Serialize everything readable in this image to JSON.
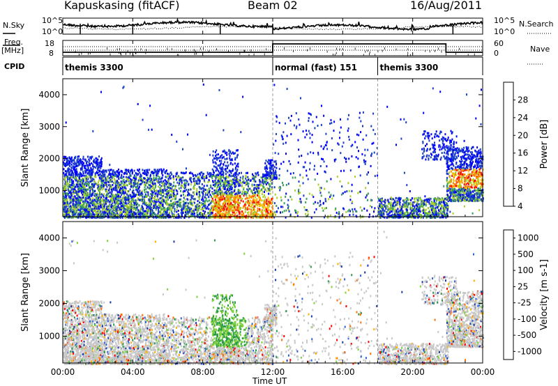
{
  "header": {
    "station": "Kapuskasing (fitACF)",
    "beam": "Beam 02",
    "date": "16/Aug/2011"
  },
  "left_labels": {
    "nsky": "N.Sky",
    "freq": "Freq.",
    "freq_unit": "[MHz]",
    "cpid": "CPID"
  },
  "right_labels": {
    "nsearch": "N.Search",
    "nave": "Nave"
  },
  "chart_data": [
    {
      "type": "line",
      "name": "noise-panel",
      "y_ticks_left": [
        "10^5",
        "10^0"
      ],
      "y_ticks_right": [
        "10^5",
        "10^0"
      ],
      "x_range_hours": [
        0,
        24
      ]
    },
    {
      "type": "line",
      "name": "freq-nave-panel",
      "y_ticks_left": [
        18,
        8
      ],
      "y_ticks_right": [
        60,
        0
      ],
      "cpid_segments": [
        {
          "label": "themis 3300",
          "start_hour": 0,
          "end_hour": 12
        },
        {
          "label": "normal (fast) 151",
          "start_hour": 12,
          "end_hour": 18
        },
        {
          "label": "themis 3300",
          "start_hour": 18,
          "end_hour": 24
        }
      ]
    },
    {
      "type": "heatmap",
      "name": "power",
      "ylabel": "Slant Range [km]",
      "ylim": [
        180,
        4500
      ],
      "y_ticks": [
        1000,
        2000,
        3000,
        4000
      ],
      "colorbar_label": "Power [dB]",
      "colorbar_ticks": [
        "28",
        "24",
        "20",
        "16",
        "12",
        "8",
        "4"
      ],
      "colors": [
        "#ff0000",
        "#ff7f00",
        "#ffbf00",
        "#a8cf2a",
        "#3aa05a",
        "#1a40c8",
        "#0000ff"
      ]
    },
    {
      "type": "heatmap",
      "name": "velocity",
      "ylabel": "Slant Range [km]",
      "ylim": [
        180,
        4500
      ],
      "y_ticks": [
        1000,
        2000,
        3000,
        4000
      ],
      "colorbar_label": "Velocity [m s-1]",
      "colorbar_ticks": [
        "1000",
        "500",
        "100",
        "25",
        "-25",
        "-100",
        "-500",
        "-1000"
      ],
      "colors": [
        "#1a3aa8",
        "#2a60d8",
        "#2a9a4a",
        "#7fd23a",
        "#c8c8c8",
        "#ffb000",
        "#ff7000",
        "#ff0000"
      ]
    }
  ],
  "x_axis": {
    "label": "Time UT",
    "ticks": [
      "00:00",
      "04:00",
      "08:00",
      "12:00",
      "16:00",
      "20:00",
      "00:00"
    ]
  }
}
